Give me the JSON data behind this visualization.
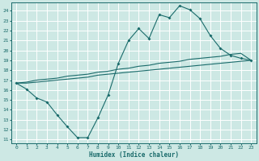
{
  "xlabel": "Humidex (Indice chaleur)",
  "bg_color": "#cde8e4",
  "grid_color": "#ffffff",
  "line_color": "#1a6b6b",
  "xlim": [
    -0.5,
    23.5
  ],
  "ylim": [
    10.6,
    24.8
  ],
  "yticks": [
    11,
    12,
    13,
    14,
    15,
    16,
    17,
    18,
    19,
    20,
    21,
    22,
    23,
    24
  ],
  "xticks": [
    0,
    1,
    2,
    3,
    4,
    5,
    6,
    7,
    8,
    9,
    10,
    11,
    12,
    13,
    14,
    15,
    16,
    17,
    18,
    19,
    20,
    21,
    22,
    23
  ],
  "line1_x": [
    0,
    1,
    2,
    3,
    4,
    5,
    6,
    7,
    8,
    9,
    10,
    11,
    12,
    13,
    14,
    15,
    16,
    17,
    18,
    19,
    20,
    21,
    22,
    23
  ],
  "line1_y": [
    16.7,
    16.1,
    15.2,
    14.8,
    13.5,
    12.3,
    11.2,
    11.2,
    13.2,
    15.5,
    18.7,
    21.0,
    22.2,
    21.2,
    23.6,
    23.3,
    24.5,
    24.1,
    23.2,
    21.5,
    20.2,
    19.5,
    19.2,
    19.0
  ],
  "line2_x": [
    0,
    1,
    2,
    3,
    4,
    5,
    6,
    7,
    8,
    9,
    10,
    11,
    12,
    13,
    14,
    15,
    16,
    17,
    18,
    19,
    20,
    21,
    22,
    23
  ],
  "line2_y": [
    16.7,
    16.8,
    17.0,
    17.1,
    17.2,
    17.4,
    17.5,
    17.6,
    17.8,
    17.9,
    18.1,
    18.2,
    18.4,
    18.5,
    18.7,
    18.8,
    18.9,
    19.1,
    19.2,
    19.3,
    19.4,
    19.6,
    19.7,
    19.0
  ],
  "line3_x": [
    0,
    1,
    2,
    3,
    4,
    5,
    6,
    7,
    8,
    9,
    10,
    11,
    12,
    13,
    14,
    15,
    16,
    17,
    18,
    19,
    20,
    21,
    22,
    23
  ],
  "line3_y": [
    16.7,
    16.7,
    16.8,
    16.9,
    17.0,
    17.1,
    17.2,
    17.3,
    17.5,
    17.6,
    17.7,
    17.8,
    17.9,
    18.0,
    18.1,
    18.2,
    18.3,
    18.4,
    18.5,
    18.6,
    18.7,
    18.8,
    18.9,
    19.0
  ]
}
